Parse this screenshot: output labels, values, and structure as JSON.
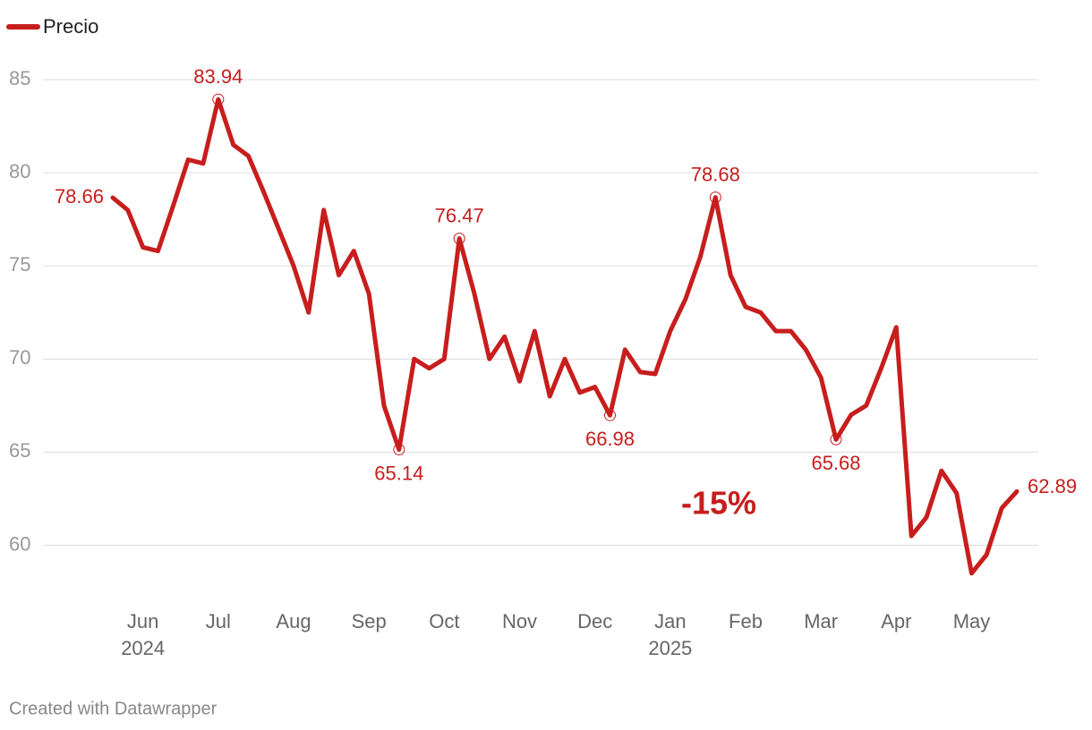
{
  "chart_data": {
    "type": "line",
    "series": [
      {
        "name": "Precio",
        "color": "#c71e1d",
        "values": [
          78.66,
          78.0,
          76.0,
          75.8,
          78.2,
          80.7,
          80.5,
          83.94,
          81.5,
          80.9,
          79.0,
          77.0,
          75.0,
          72.5,
          78.0,
          74.5,
          75.8,
          73.5,
          67.5,
          65.14,
          70.0,
          69.5,
          70.0,
          76.47,
          73.5,
          70.0,
          71.2,
          68.8,
          71.5,
          68.0,
          70.0,
          68.2,
          68.5,
          66.98,
          70.5,
          69.3,
          69.2,
          71.5,
          73.2,
          75.5,
          78.68,
          74.5,
          72.8,
          72.5,
          71.5,
          71.5,
          70.5,
          69.0,
          65.68,
          67.0,
          67.5,
          69.5,
          71.7,
          60.5,
          61.5,
          64.0,
          62.8,
          58.5,
          59.5,
          62.0,
          62.89
        ],
        "value_labels": [
          "78.66",
          null,
          null,
          null,
          null,
          null,
          null,
          "83.94",
          null,
          null,
          null,
          null,
          null,
          null,
          null,
          null,
          null,
          null,
          null,
          "65.14",
          null,
          null,
          null,
          "76.47",
          null,
          null,
          null,
          null,
          null,
          null,
          null,
          null,
          null,
          "66.98",
          null,
          null,
          null,
          null,
          null,
          null,
          "78.68",
          null,
          null,
          null,
          null,
          null,
          null,
          null,
          "65.68",
          null,
          null,
          null,
          null,
          null,
          null,
          null,
          null,
          null,
          null,
          null,
          "62.89"
        ]
      }
    ],
    "categories": [
      null,
      null,
      "Jun",
      null,
      null,
      null,
      null,
      "Jul",
      null,
      null,
      null,
      null,
      "Aug",
      null,
      null,
      null,
      null,
      "Sep",
      null,
      null,
      null,
      null,
      "Oct",
      null,
      null,
      null,
      null,
      "Nov",
      null,
      null,
      null,
      null,
      "Dec",
      null,
      null,
      null,
      null,
      "Jan",
      null,
      null,
      null,
      null,
      "Feb",
      null,
      null,
      null,
      null,
      "Mar",
      null,
      null,
      null,
      null,
      "Apr",
      null,
      null,
      null,
      null,
      "May",
      null,
      null,
      null
    ],
    "category_years": [
      null,
      null,
      "2024",
      null,
      null,
      null,
      null,
      null,
      null,
      null,
      null,
      null,
      null,
      null,
      null,
      null,
      null,
      null,
      null,
      null,
      null,
      null,
      null,
      null,
      null,
      null,
      null,
      null,
      null,
      null,
      null,
      null,
      null,
      null,
      null,
      null,
      null,
      "2025",
      null,
      null,
      null,
      null,
      null,
      null,
      null,
      null,
      null,
      null,
      null,
      null,
      null,
      null,
      null,
      null,
      null,
      null,
      null,
      null,
      null,
      null,
      null
    ],
    "ylim": [
      57,
      85
    ],
    "yticks": [
      60,
      65,
      70,
      75,
      80,
      85
    ],
    "grid": true,
    "annotations": [
      "-15%"
    ],
    "footer": "Created with Datawrapper"
  }
}
